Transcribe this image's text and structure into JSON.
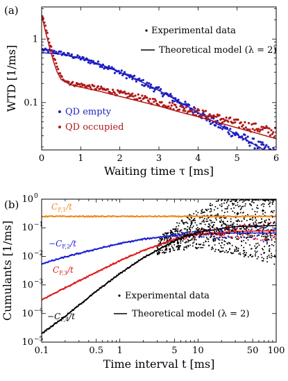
{
  "chart_data": [
    {
      "panel_label": "(a)",
      "type": "scatter",
      "xlabel": "Waiting time τ [ms]",
      "ylabel": "WTD [1/ms]",
      "xlim": [
        0,
        6
      ],
      "ylim": [
        0.018,
        3.2
      ],
      "y_scale": "log",
      "x_ticks": [
        0,
        1,
        2,
        3,
        4,
        5,
        6
      ],
      "y_ticks": [
        {
          "value": 1,
          "label": "1"
        },
        {
          "value": 0.1,
          "label": "0.1"
        }
      ],
      "legend_markers": [
        {
          "text": "Experimental data",
          "style": "dot"
        },
        {
          "text": "Theoretical model (λ = 2)",
          "style": "line"
        }
      ],
      "series": [
        {
          "name": "QD empty",
          "color": "#1f1fbf",
          "points_x": [
            0.0,
            0.25,
            0.5,
            1.0,
            1.5,
            2.0,
            2.5,
            3.0,
            3.5,
            4.0,
            4.5,
            5.0,
            5.5,
            6.0
          ],
          "points_y": [
            0.68,
            0.64,
            0.6,
            0.5,
            0.4,
            0.3,
            0.22,
            0.155,
            0.105,
            0.07,
            0.045,
            0.031,
            0.022,
            0.016
          ],
          "model_x": [
            0.0,
            0.5,
            1.0,
            1.5,
            2.0,
            2.5,
            3.0,
            3.5,
            4.0,
            4.5,
            5.0,
            5.5,
            6.0
          ],
          "model_y": [
            0.61,
            0.58,
            0.5,
            0.4,
            0.3,
            0.22,
            0.155,
            0.105,
            0.07,
            0.046,
            0.031,
            0.021,
            0.014
          ]
        },
        {
          "name": "QD occupied",
          "color": "#b01818",
          "points_x": [
            0.0,
            0.1,
            0.2,
            0.3,
            0.4,
            0.5,
            0.75,
            1.0,
            1.5,
            2.0,
            2.5,
            3.0,
            3.5,
            4.0,
            4.5,
            5.0,
            5.5,
            6.0
          ],
          "points_y": [
            2.6,
            1.5,
            0.9,
            0.55,
            0.35,
            0.25,
            0.2,
            0.19,
            0.165,
            0.14,
            0.12,
            0.1,
            0.085,
            0.07,
            0.058,
            0.047,
            0.04,
            0.034
          ],
          "model_x": [
            0.0,
            0.1,
            0.2,
            0.3,
            0.4,
            0.5,
            0.75,
            1.0,
            1.5,
            2.0,
            2.5,
            3.0,
            3.5,
            4.0,
            4.5,
            5.0,
            5.5,
            6.0
          ],
          "model_y": [
            2.4,
            1.3,
            0.75,
            0.45,
            0.3,
            0.23,
            0.19,
            0.175,
            0.15,
            0.125,
            0.105,
            0.088,
            0.072,
            0.06,
            0.049,
            0.04,
            0.033,
            0.027
          ]
        }
      ]
    },
    {
      "panel_label": "(b)",
      "type": "scatter",
      "xlabel": "Time interval t [ms]",
      "ylabel": "Cumulants [1/ms]",
      "x_scale": "log",
      "y_scale": "log",
      "xlim": [
        0.1,
        100
      ],
      "ylim": [
        1e-05,
        1
      ],
      "x_ticks": [
        {
          "value": 0.1,
          "label": "0.1"
        },
        {
          "value": 0.5,
          "label": "0.5"
        },
        {
          "value": 1,
          "label": "1"
        },
        {
          "value": 5,
          "label": "5"
        },
        {
          "value": 10,
          "label": "10"
        },
        {
          "value": 50,
          "label": "50"
        },
        {
          "value": 100,
          "label": "100"
        }
      ],
      "y_ticks": [
        {
          "value": 1,
          "base": "10",
          "exp": "0"
        },
        {
          "value": 0.1,
          "base": "10",
          "exp": "−1"
        },
        {
          "value": 0.01,
          "base": "10",
          "exp": "−2"
        },
        {
          "value": 0.001,
          "base": "10",
          "exp": "−3"
        },
        {
          "value": 0.0001,
          "base": "10",
          "exp": "−4"
        },
        {
          "value": 1e-05,
          "base": "10",
          "exp": "−5"
        }
      ],
      "legend_markers": [
        {
          "text": "Experimental data",
          "style": "dot"
        },
        {
          "text": "Theoretical model (λ = 2)",
          "style": "line"
        }
      ],
      "series": [
        {
          "label_main": "C",
          "label_sub": "F,1",
          "label_tail": "/t",
          "label_prefix": "",
          "color": "#f08a1c",
          "x": [
            0.1,
            0.3,
            1,
            3,
            10,
            30,
            100
          ],
          "y": [
            0.25,
            0.25,
            0.25,
            0.25,
            0.25,
            0.25,
            0.25
          ]
        },
        {
          "label_main": "C",
          "label_sub": "F,2",
          "label_tail": "/t",
          "label_prefix": "−",
          "color": "#1f1fd0",
          "x": [
            0.1,
            0.2,
            0.5,
            1,
            2,
            5,
            10,
            30,
            100
          ],
          "y": [
            0.0055,
            0.0095,
            0.018,
            0.028,
            0.04,
            0.055,
            0.06,
            0.065,
            0.066
          ]
        },
        {
          "label_main": "C",
          "label_sub": "F,3",
          "label_tail": "/t",
          "label_prefix": "",
          "color": "#e01818",
          "x": [
            0.1,
            0.2,
            0.5,
            1,
            2,
            5,
            10,
            30,
            100
          ],
          "y": [
            0.0003,
            0.0008,
            0.0028,
            0.007,
            0.016,
            0.04,
            0.06,
            0.075,
            0.078
          ]
        },
        {
          "label_main": "C",
          "label_sub": "F,4",
          "label_tail": "/t",
          "label_prefix": "−",
          "color": "#000000",
          "x": [
            0.1,
            0.2,
            0.5,
            1,
            2,
            5,
            10,
            30,
            100
          ],
          "y": [
            2e-05,
            8e-05,
            0.0006,
            0.0025,
            0.009,
            0.035,
            0.07,
            0.11,
            0.12
          ]
        }
      ]
    }
  ]
}
